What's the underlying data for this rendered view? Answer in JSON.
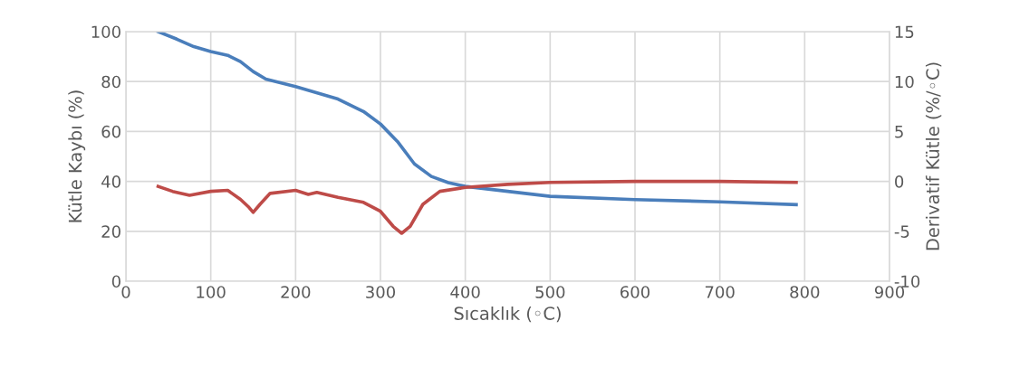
{
  "chart_data": {
    "type": "line",
    "xlabel": "Sıcaklık (◦C)",
    "ylabel": "Kütle Kaybı (%)",
    "y2label": "Derivatif Kütle (%/◦C)",
    "xlim": [
      0,
      900
    ],
    "xticks": [
      0,
      100,
      200,
      300,
      400,
      500,
      600,
      700,
      800,
      900
    ],
    "ylim": [
      0,
      100
    ],
    "yticks": [
      0,
      20,
      40,
      60,
      80,
      100
    ],
    "y2lim": [
      -10,
      15
    ],
    "y2ticks": [
      -10,
      -5,
      0,
      5,
      10,
      15
    ],
    "grid": true,
    "legend": false,
    "marker": "none",
    "line_style": "solid",
    "series": [
      {
        "color": "#4a7ebb",
        "x": [
          38,
          60,
          80,
          100,
          120,
          135,
          150,
          165,
          200,
          250,
          280,
          300,
          320,
          340,
          360,
          380,
          400,
          450,
          500,
          600,
          700,
          790
        ],
        "values": [
          100,
          97,
          94,
          92,
          90.5,
          88,
          84,
          81,
          78,
          73,
          68,
          63,
          56,
          47,
          42,
          39.5,
          38,
          36,
          34,
          32.7,
          31.8,
          30.7
        ]
      },
      {
        "color": "#be4b48",
        "axis": "y2",
        "x": [
          38,
          55,
          75,
          100,
          120,
          135,
          145,
          150,
          158,
          170,
          200,
          215,
          225,
          250,
          280,
          300,
          315,
          325,
          335,
          350,
          370,
          400,
          450,
          500,
          600,
          700,
          790
        ],
        "values": [
          -0.5,
          -1,
          -1.4,
          -1,
          -0.9,
          -1.8,
          -2.6,
          -3.1,
          -2.3,
          -1.2,
          -0.9,
          -1.3,
          -1.1,
          -1.6,
          -2.1,
          -3,
          -4.5,
          -5.2,
          -4.5,
          -2.3,
          -1,
          -0.6,
          -0.3,
          -0.1,
          0,
          0,
          -0.1
        ]
      }
    ]
  }
}
